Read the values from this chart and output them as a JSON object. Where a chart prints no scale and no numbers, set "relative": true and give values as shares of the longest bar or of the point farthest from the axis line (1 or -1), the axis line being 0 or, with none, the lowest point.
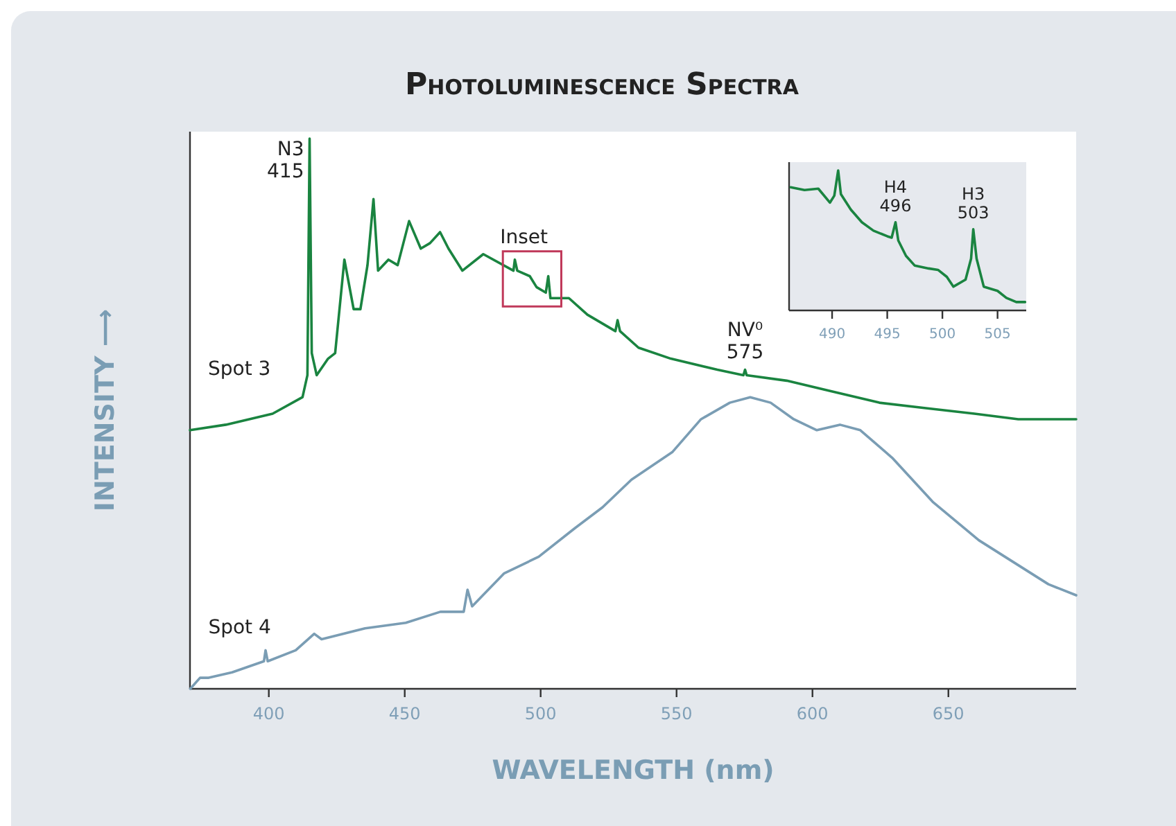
{
  "chart_data": [
    {
      "type": "line",
      "title": "Photoluminescence Spectra",
      "xlabel": "WAVELENGTH (nm)",
      "ylabel": "INTENSITY ⟶",
      "relative": true,
      "xlim": [
        371,
        697
      ],
      "xticks": [
        400,
        450,
        500,
        550,
        600,
        650
      ],
      "annotations": [
        {
          "text": "N3\n415",
          "x": 415,
          "y": 1.0
        },
        "Inset",
        {
          "text": "NV⁰\n575",
          "x": 575.2,
          "y": 0.58
        }
      ],
      "series": [
        {
          "name": "Spot 3",
          "color": "#1a8440",
          "x": [
            371,
            384.2,
            401.4,
            412.4,
            414.2,
            415,
            415.8,
            417.6,
            421.8,
            424.4,
            427.8,
            431.2,
            433.7,
            436.3,
            438.5,
            440.2,
            444,
            447.4,
            451.6,
            455.9,
            459.3,
            463,
            466.1,
            471.2,
            478.9,
            490,
            490.5,
            491.4,
            496,
            498.5,
            501.9,
            502.8,
            503.6,
            510.4,
            517.2,
            527.5,
            528.3,
            529.2,
            536,
            547.9,
            565,
            574.6,
            575.2,
            575.8,
            590.5,
            607.6,
            624.6,
            641.7,
            659.6,
            675.7,
            697
          ],
          "values": [
            0.47,
            0.48,
            0.5,
            0.53,
            0.57,
            1.0,
            0.61,
            0.57,
            0.6,
            0.61,
            0.78,
            0.69,
            0.69,
            0.77,
            0.89,
            0.76,
            0.78,
            0.77,
            0.85,
            0.8,
            0.81,
            0.83,
            0.8,
            0.76,
            0.79,
            0.76,
            0.78,
            0.76,
            0.75,
            0.73,
            0.72,
            0.75,
            0.71,
            0.71,
            0.68,
            0.65,
            0.67,
            0.65,
            0.62,
            0.6,
            0.58,
            0.57,
            0.58,
            0.57,
            0.56,
            0.54,
            0.52,
            0.51,
            0.5,
            0.49,
            0.49
          ]
        },
        {
          "name": "Spot 4",
          "color": "#7a9db4",
          "x": [
            371.1,
            374.7,
            377.9,
            386.5,
            398.2,
            398.8,
            399.6,
            409.9,
            416.7,
            419.4,
            435.4,
            450.4,
            463.1,
            471.7,
            473.1,
            474.8,
            486.6,
            499.3,
            512.1,
            522.8,
            533.4,
            548.4,
            559,
            569.6,
            577.1,
            584.6,
            593.1,
            601.6,
            610.1,
            617.6,
            629.3,
            644.2,
            661.2,
            674,
            686.8,
            697
          ],
          "values": [
            0.0,
            0.02,
            0.02,
            0.03,
            0.05,
            0.07,
            0.05,
            0.07,
            0.1,
            0.09,
            0.11,
            0.12,
            0.14,
            0.14,
            0.18,
            0.15,
            0.21,
            0.24,
            0.29,
            0.33,
            0.38,
            0.43,
            0.49,
            0.52,
            0.53,
            0.52,
            0.49,
            0.47,
            0.48,
            0.47,
            0.42,
            0.34,
            0.27,
            0.23,
            0.19,
            0.17
          ]
        }
      ]
    },
    {
      "type": "line",
      "relative": true,
      "xlim": [
        486.1,
        507.6
      ],
      "xticks": [
        490,
        495,
        500,
        505
      ],
      "annotations": [
        {
          "text": "H4\n496",
          "x": 495.75,
          "y": 0.63
        },
        {
          "text": "H3\n503",
          "x": 502.8,
          "y": 0.58
        }
      ],
      "series": [
        {
          "color": "#1a8440",
          "x": [
            486.25,
            487.5,
            488.75,
            489.8,
            490.2,
            490.55,
            490.8,
            491.7,
            492.7,
            493.75,
            495,
            495.4,
            495.75,
            496,
            496.7,
            497.5,
            498.75,
            499.6,
            500.4,
            501,
            502.1,
            502.6,
            502.8,
            503.1,
            503.75,
            505,
            505.8,
            506.7,
            507.5
          ],
          "values": [
            0.88,
            0.86,
            0.87,
            0.77,
            0.82,
            1.0,
            0.83,
            0.72,
            0.63,
            0.57,
            0.53,
            0.52,
            0.63,
            0.5,
            0.39,
            0.32,
            0.3,
            0.29,
            0.24,
            0.17,
            0.22,
            0.37,
            0.58,
            0.37,
            0.17,
            0.14,
            0.09,
            0.06,
            0.06
          ]
        }
      ]
    }
  ]
}
